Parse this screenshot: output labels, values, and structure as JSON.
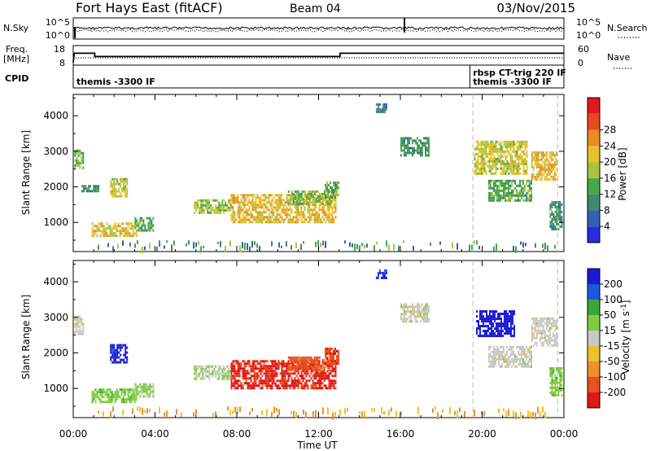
{
  "header": {
    "station": "Fort Hays East (fitACF)",
    "beam": "Beam 04",
    "date": "03/Nov/2015"
  },
  "top_panels": {
    "nsky_label": "N.Sky",
    "nsky_ticks": [
      "10^5",
      "10^0"
    ],
    "nsearch_label": "N.Search",
    "nsearch_ticks": [
      "10^5",
      "10^0"
    ],
    "freq_label_line1": "Freq.",
    "freq_label_line2": "[MHz]",
    "freq_ticks": [
      "18",
      "8"
    ],
    "nave_label": "Nave",
    "nave_ticks": [
      "60",
      "0"
    ],
    "cpid_label": "CPID",
    "cpid_entries": [
      {
        "text": "themis -3300 IF",
        "row": "lower",
        "at": 0.0
      },
      {
        "text": "rbsp CT-trig 220 IF",
        "row": "upper",
        "at": 19.55
      },
      {
        "text": "themis -3300 IF",
        "row": "lower",
        "at": 19.55
      }
    ]
  },
  "colors": {
    "power": [
      "#2a2ae0",
      "#3560b0",
      "#3e8a6e",
      "#48a848",
      "#a8c440",
      "#ecc028",
      "#ee8a22",
      "#e64a1e",
      "#e01a1a"
    ],
    "velocity": [
      "#1a1ad6",
      "#1a5ae0",
      "#38a838",
      "#80cc3a",
      "#c8c8c8",
      "#f0c030",
      "#f0902a",
      "#ea5020",
      "#e01818"
    ]
  },
  "chart_data": [
    {
      "type": "heatmap",
      "panel": "power",
      "xlabel": "",
      "ylabel": "Slant Range [km]",
      "xlim": [
        0,
        24
      ],
      "ylim": [
        180,
        4600
      ],
      "yticks": [
        "1000",
        "2000",
        "3000",
        "4000"
      ],
      "colorbar_label": "Power [dB]",
      "colorbar_ticks": [
        "4",
        "8",
        "12",
        "16",
        "20",
        "24",
        "28"
      ],
      "colorbar_range": [
        0,
        31
      ],
      "regions": [
        {
          "t0": 0.05,
          "t1": 0.45,
          "r0": 2550,
          "r1": 3050,
          "value": 13
        },
        {
          "t0": 0.4,
          "t1": 1.2,
          "r0": 1900,
          "r1": 2050,
          "value": 10
        },
        {
          "t0": 1.8,
          "t1": 2.6,
          "r0": 1750,
          "r1": 2250,
          "value": 17
        },
        {
          "t0": 0.9,
          "t1": 3.1,
          "r0": 650,
          "r1": 1000,
          "value": 18
        },
        {
          "t0": 3.0,
          "t1": 3.9,
          "r0": 750,
          "r1": 1150,
          "value": 12
        },
        {
          "t0": 5.9,
          "t1": 7.7,
          "r0": 1300,
          "r1": 1650,
          "value": 15
        },
        {
          "t0": 7.7,
          "t1": 12.8,
          "r0": 1000,
          "r1": 1800,
          "value": 19
        },
        {
          "t0": 10.5,
          "t1": 12.6,
          "r0": 1500,
          "r1": 1900,
          "value": 14
        },
        {
          "t0": 12.3,
          "t1": 13.0,
          "r0": 1700,
          "r1": 2150,
          "value": 12
        },
        {
          "t0": 14.8,
          "t1": 15.3,
          "r0": 4100,
          "r1": 4350,
          "value": 8
        },
        {
          "t0": 16.0,
          "t1": 17.4,
          "r0": 2900,
          "r1": 3400,
          "value": 10
        },
        {
          "t0": 19.6,
          "t1": 22.2,
          "r0": 2400,
          "r1": 3300,
          "value": 17
        },
        {
          "t0": 20.3,
          "t1": 22.4,
          "r0": 1600,
          "r1": 2200,
          "value": 12
        },
        {
          "t0": 22.4,
          "t1": 23.6,
          "r0": 2200,
          "r1": 3000,
          "value": 19
        },
        {
          "t0": 23.3,
          "t1": 23.9,
          "r0": 800,
          "r1": 1600,
          "value": 9
        }
      ]
    },
    {
      "type": "heatmap",
      "panel": "velocity",
      "xlabel": "Time UT",
      "ylabel": "Slant Range [km]",
      "xlim": [
        0,
        24
      ],
      "ylim": [
        180,
        4600
      ],
      "xticks": [
        "00:00",
        "04:00",
        "08:00",
        "12:00",
        "16:00",
        "20:00",
        "00:00"
      ],
      "yticks": [
        "1000",
        "2000",
        "3000",
        "4000"
      ],
      "colorbar_label": "Velocity [m s^-1]",
      "colorbar_ticks": [
        "200",
        "100",
        "50",
        "15",
        "-15",
        "-50",
        "-100",
        "-200"
      ],
      "colorbar_range": [
        -250,
        250
      ],
      "regions": [
        {
          "t0": 0.05,
          "t1": 0.45,
          "r0": 2550,
          "r1": 3050,
          "value": 0
        },
        {
          "t0": 1.8,
          "t1": 2.6,
          "r0": 1750,
          "r1": 2250,
          "value": 220
        },
        {
          "t0": 0.9,
          "t1": 3.1,
          "r0": 650,
          "r1": 1000,
          "value": 60
        },
        {
          "t0": 3.0,
          "t1": 3.9,
          "r0": 750,
          "r1": 1150,
          "value": 40
        },
        {
          "t0": 5.9,
          "t1": 7.7,
          "r0": 1300,
          "r1": 1650,
          "value": 20
        },
        {
          "t0": 7.7,
          "t1": 12.8,
          "r0": 1000,
          "r1": 1800,
          "value": -210
        },
        {
          "t0": 10.5,
          "t1": 12.6,
          "r0": 1500,
          "r1": 1900,
          "value": -160
        },
        {
          "t0": 12.3,
          "t1": 13.0,
          "r0": 1700,
          "r1": 2150,
          "value": -180
        },
        {
          "t0": 14.8,
          "t1": 15.3,
          "r0": 4100,
          "r1": 4350,
          "value": 200
        },
        {
          "t0": 16.0,
          "t1": 17.4,
          "r0": 2900,
          "r1": 3400,
          "value": 0
        },
        {
          "t0": 19.7,
          "t1": 21.6,
          "r0": 2500,
          "r1": 3200,
          "value": 230
        },
        {
          "t0": 20.3,
          "t1": 22.4,
          "r0": 1600,
          "r1": 2200,
          "value": 0
        },
        {
          "t0": 22.4,
          "t1": 23.6,
          "r0": 2200,
          "r1": 3000,
          "value": 0
        },
        {
          "t0": 23.3,
          "t1": 23.9,
          "r0": 800,
          "r1": 1600,
          "value": 60
        }
      ]
    }
  ]
}
